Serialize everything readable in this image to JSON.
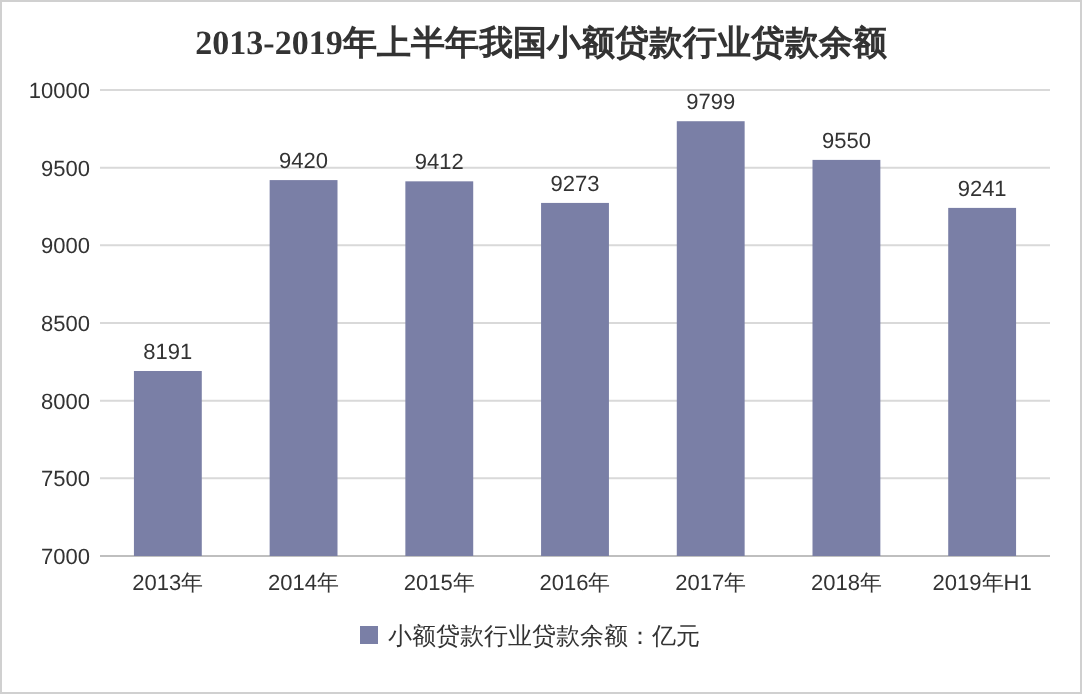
{
  "chart_data": {
    "type": "bar",
    "title": "2013-2019年上半年我国小额贷款行业贷款余额",
    "categories": [
      "2013年",
      "2014年",
      "2015年",
      "2016年",
      "2017年",
      "2018年",
      "2019年H1"
    ],
    "series": [
      {
        "name": "小额贷款行业贷款余额：亿元",
        "color": "#7a7fa6",
        "values": [
          8191,
          9420,
          9412,
          9273,
          9799,
          9550,
          9241
        ]
      }
    ],
    "ylim": [
      7000,
      10000
    ],
    "yticks": [
      7000,
      7500,
      8000,
      8500,
      9000,
      9500,
      10000
    ],
    "grid": "y",
    "legend": "bottom",
    "data_labels": true
  }
}
